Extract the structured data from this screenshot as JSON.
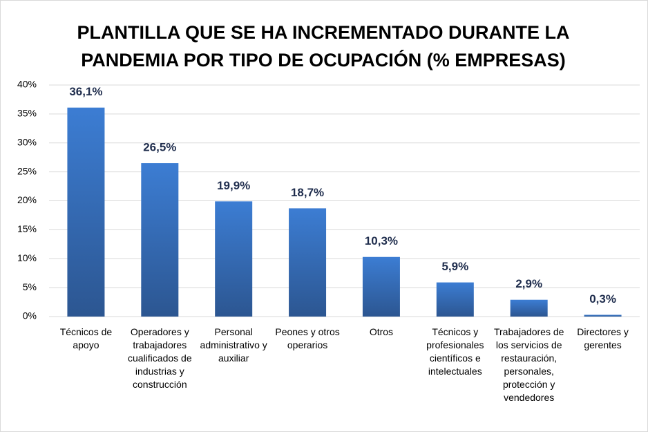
{
  "chart_data": {
    "type": "bar",
    "title": "PLANTILLA QUE SE HA INCREMENTADO DURANTE LA PANDEMIA POR TIPO DE OCUPACIÓN (% EMPRESAS)",
    "categories": [
      "Técnicos de apoyo",
      "Operadores y trabajadores cualificados de industrias y construcción",
      "Personal administrativo y auxiliar",
      "Peones y otros operarios",
      "Otros",
      "Técnicos y profesionales científicos e intelectuales",
      "Trabajadores de los servicios de restauración, personales, protección y vendedores",
      "Directores y gerentes"
    ],
    "values": [
      36.1,
      26.5,
      19.9,
      18.7,
      10.3,
      5.9,
      2.9,
      0.3
    ],
    "value_labels": [
      "36,1%",
      "26,5%",
      "19,9%",
      "18,7%",
      "10,3%",
      "5,9%",
      "2,9%",
      "0,3%"
    ],
    "color": "#3c7dd3",
    "ylim": [
      0,
      40
    ],
    "yticks": [
      {
        "value": 0,
        "label": "0%"
      },
      {
        "value": 5,
        "label": "5%"
      },
      {
        "value": 10,
        "label": "10%"
      },
      {
        "value": 15,
        "label": "15%"
      },
      {
        "value": 20,
        "label": "20%"
      },
      {
        "value": 25,
        "label": "25%"
      },
      {
        "value": 30,
        "label": "30%"
      },
      {
        "value": 35,
        "label": "35%"
      },
      {
        "value": 40,
        "label": "40%"
      }
    ],
    "grid": true
  }
}
